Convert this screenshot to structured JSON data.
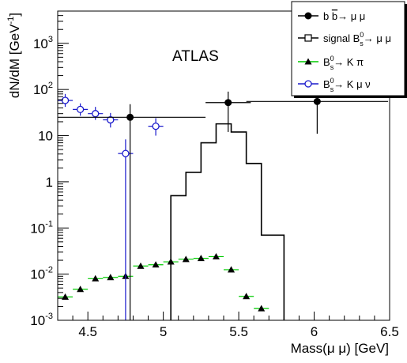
{
  "chart_data": {
    "type": "scatter",
    "title": "",
    "annotation": "ATLAS",
    "xlabel": "Mass(μ μ) [GeV]",
    "ylabel": "dN/dM [GeV⁻¹]",
    "xlim": [
      4.3,
      6.5
    ],
    "ylim": [
      0.001,
      5000
    ],
    "y_scale": "log",
    "grid": false,
    "legend_position": "top-right",
    "x_ticks": [
      "4.5",
      "5",
      "5.5",
      "6",
      "6.5"
    ],
    "y_ticks": [
      {
        "value": 0.001,
        "base": "10",
        "exp": "-3"
      },
      {
        "value": 0.01,
        "base": "10",
        "exp": "-2"
      },
      {
        "value": 0.1,
        "base": "10",
        "exp": "-1"
      },
      {
        "value": 1,
        "label": "1"
      },
      {
        "value": 10,
        "label": "10"
      },
      {
        "value": 100,
        "base": "10",
        "exp": "2"
      },
      {
        "value": 1000,
        "base": "10",
        "exp": "3"
      }
    ],
    "legend": [
      {
        "pre": "b ",
        "over": "b",
        "post": "→ μ μ",
        "color": "#000000",
        "marker": "filled-circle"
      },
      {
        "pre": "signal B",
        "sub": "s",
        "sup": "0",
        "post": "→ μ μ",
        "color": "#000000",
        "marker": "open-square"
      },
      {
        "pre": "B",
        "sub": "s",
        "sup": "0",
        "post": "→ K π",
        "color": "#00cc00",
        "marker": "filled-triangle"
      },
      {
        "pre": "B",
        "sub": "s",
        "sup": "0",
        "post": "→ K μ ν",
        "color": "#1a1acc",
        "marker": "open-circle"
      }
    ],
    "series": [
      {
        "id": "bb",
        "color": "#000000",
        "marker": "filled-circle",
        "points": [
          {
            "x": 4.78,
            "y": 25,
            "xerr": 0.5,
            "ylo": 0.001,
            "yhi": 48
          },
          {
            "x": 5.43,
            "y": 52,
            "xerr": 0.15,
            "ylo": 12,
            "yhi": 90
          },
          {
            "x": 6.02,
            "y": 55,
            "xerr": 0.47,
            "ylo": 11,
            "yhi": 95
          }
        ]
      },
      {
        "id": "signal",
        "color": "#000000",
        "style": "histogram",
        "bin_edges": [
          5.05,
          5.15,
          5.25,
          5.35,
          5.45,
          5.55,
          5.65,
          5.8
        ],
        "values": [
          0.5,
          1.6,
          7.0,
          18.0,
          12.0,
          2.5,
          0.07
        ]
      },
      {
        "id": "kpi",
        "color": "#00cc00",
        "marker": "filled-triangle",
        "xerr": 0.05,
        "points": [
          {
            "x": 4.35,
            "y": 0.0032
          },
          {
            "x": 4.45,
            "y": 0.0047
          },
          {
            "x": 4.55,
            "y": 0.008
          },
          {
            "x": 4.65,
            "y": 0.0085
          },
          {
            "x": 4.75,
            "y": 0.009
          },
          {
            "x": 4.85,
            "y": 0.015
          },
          {
            "x": 4.95,
            "y": 0.016
          },
          {
            "x": 5.05,
            "y": 0.0185
          },
          {
            "x": 5.15,
            "y": 0.021
          },
          {
            "x": 5.25,
            "y": 0.022
          },
          {
            "x": 5.35,
            "y": 0.024
          },
          {
            "x": 5.45,
            "y": 0.0125
          },
          {
            "x": 5.55,
            "y": 0.0033
          },
          {
            "x": 5.65,
            "y": 0.0018
          }
        ]
      },
      {
        "id": "kmunu",
        "color": "#1a1acc",
        "marker": "open-circle",
        "xerr": 0.05,
        "points": [
          {
            "x": 4.35,
            "y": 58,
            "ylo": 42,
            "yhi": 80
          },
          {
            "x": 4.45,
            "y": 37,
            "ylo": 27,
            "yhi": 50
          },
          {
            "x": 4.55,
            "y": 30,
            "ylo": 22,
            "yhi": 42
          },
          {
            "x": 4.65,
            "y": 22,
            "ylo": 15,
            "yhi": 31
          },
          {
            "x": 4.75,
            "y": 4.1,
            "ylo": 0.001,
            "yhi": 8.3
          },
          {
            "x": 4.95,
            "y": 16,
            "ylo": 10,
            "yhi": 24
          }
        ]
      }
    ]
  }
}
